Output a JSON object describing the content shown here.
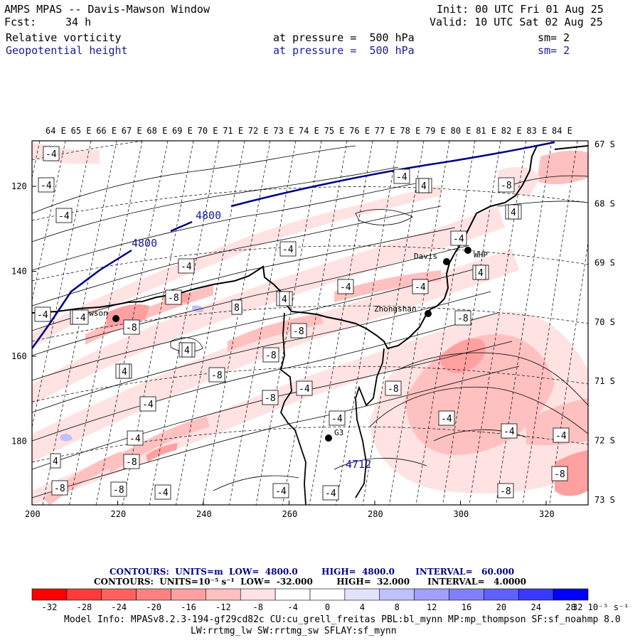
{
  "header": {
    "title": "AMPS MPAS -- Davis-Mawson Window",
    "fcst_label": "Fcst:",
    "fcst_value": "34 h",
    "init": "Init: 00 UTC Fri 01 Aug 25",
    "valid": "Valid: 10 UTC Sat 02 Aug 25",
    "field1": "Relative vorticity",
    "field1_level": "at pressure =  500 hPa",
    "field1_sm": "sm= 2",
    "field2": "Geopotential height",
    "field2_level": "at pressure =  500 hPa",
    "field2_sm": "sm= 2"
  },
  "map": {
    "lon_labels": [
      "64 E",
      "65 E",
      "66 E",
      "67 E",
      "68 E",
      "69 E",
      "70 E",
      "71 E",
      "72 E",
      "73 E",
      "74 E",
      "75 E",
      "76 E",
      "77 E",
      "78 E",
      "79 E",
      "80 E",
      "81 E",
      "82 E",
      "83 E",
      "84 E"
    ],
    "lat_labels": [
      "67 S",
      "68 S",
      "69 S",
      "70 S",
      "71 S",
      "72 S",
      "73 S"
    ],
    "x_ticks": [
      "200",
      "220",
      "240",
      "260",
      "280",
      "300",
      "320"
    ],
    "y_ticks": [
      "120",
      "140",
      "160",
      "180"
    ],
    "stations": [
      "Mawson",
      "Davis",
      "WHP",
      "Zhongshan",
      "G3"
    ],
    "height_labels": [
      "4800",
      "4800"
    ],
    "low_label": "4712",
    "vorticity_labels": [
      "-4",
      "-4",
      "-4",
      "-4",
      "-4",
      "-4",
      "-4",
      "-4",
      "-4",
      "-4",
      "-4",
      "-4",
      "-4",
      "-4",
      "-4",
      "-4",
      "-4",
      "-4",
      "-4",
      "-4",
      "-4",
      "-4",
      "-4",
      "-4",
      "-4",
      "-4",
      "-4",
      "-4",
      "-8",
      "-8",
      "-8",
      "-8",
      "-8",
      "-8",
      "-8",
      "-8",
      "-8",
      "-8",
      "-8",
      "-8",
      "-8",
      "-8",
      "4",
      "4",
      "4",
      "4",
      "4",
      "4",
      "4",
      "8"
    ]
  },
  "contours": {
    "line1": "CONTOURS:  UNITS=m  LOW=  4800.0        HIGH=  4800.0       INTERVAL=   60.000",
    "line2": "CONTOURS:  UNITS=10⁻⁵ s⁻¹  LOW=  -32.000        HIGH=  32.000      INTERVAL=   4.0000"
  },
  "colorbar": {
    "colors": [
      "#ff0000",
      "#ff3a3a",
      "#ff6060",
      "#ff8080",
      "#ffa0a0",
      "#ffc0c0",
      "#ffe2e2",
      "#ffffff",
      "#ffffff",
      "#e2e2ff",
      "#c0c0ff",
      "#a0a0ff",
      "#8080ff",
      "#6060ff",
      "#3a3aff",
      "#0000ff"
    ],
    "labels": [
      "-32",
      "-28",
      "-24",
      "-20",
      "-16",
      "-12",
      "-8",
      "-4",
      "0",
      "4",
      "8",
      "12",
      "16",
      "20",
      "24",
      "28",
      "32"
    ],
    "unit": "10⁻⁵ s⁻¹"
  },
  "footer": {
    "line1": "Model Info: MPASv8.2.3-194-gf29cd82c CU:cu_grell_freitas PBL:bl_mynn MP:mp_thompson SF:sf_noahmp 8.0",
    "line2": "LW:rrtmg_lw SW:rrtmg_sw SFLAY:sf_mynn"
  }
}
